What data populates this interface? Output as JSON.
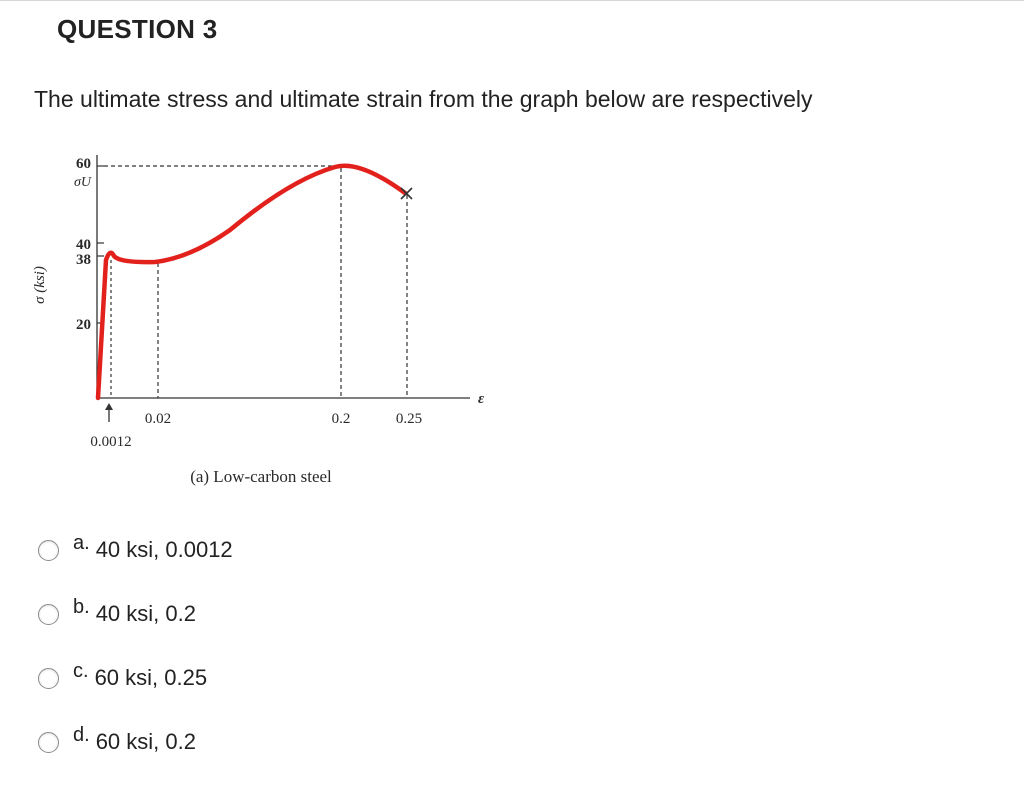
{
  "question": {
    "title": "QUESTION 3",
    "text": "The ultimate stress and ultimate strain from the graph below are respectively"
  },
  "figure": {
    "caption": "(a) Low-carbon steel",
    "y_axis_label": "σ (ksi)",
    "x_axis_symbol": "ε",
    "y_tick_labels": [
      "60",
      "40",
      "38",
      "20"
    ],
    "y_sigma_label": "σU",
    "x_tick_labels": [
      "0.02",
      "0.2",
      "0.25"
    ],
    "x_strain_label": "0.0012",
    "curve_color": "#e3211c"
  },
  "options": [
    {
      "letter": "a.",
      "text": "40 ksi, 0.0012"
    },
    {
      "letter": "b.",
      "text": "40 ksi, 0.2"
    },
    {
      "letter": "c.",
      "text": "60 ksi, 0.25"
    },
    {
      "letter": "d.",
      "text": "60 ksi, 0.2"
    }
  ]
}
